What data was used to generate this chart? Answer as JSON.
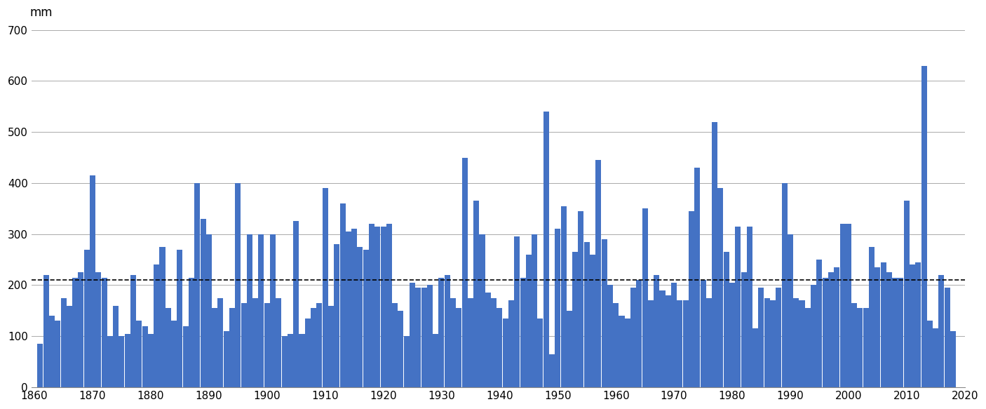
{
  "ylabel": "mm",
  "ylim": [
    0,
    700
  ],
  "yticks": [
    0,
    100,
    200,
    300,
    400,
    500,
    600,
    700
  ],
  "xlim": [
    1859.5,
    2019.5
  ],
  "xticks": [
    1860,
    1870,
    1880,
    1890,
    1900,
    1910,
    1920,
    1930,
    1940,
    1950,
    1960,
    1970,
    1980,
    1990,
    2000,
    2010,
    2020
  ],
  "bar_color": "#4472C4",
  "mean_line": 210,
  "background_color": "#ffffff",
  "bar_width": 0.97,
  "values": {
    "1861": 85,
    "1862": 220,
    "1863": 140,
    "1864": 130,
    "1865": 175,
    "1866": 160,
    "1867": 215,
    "1868": 225,
    "1869": 270,
    "1870": 415,
    "1871": 225,
    "1872": 215,
    "1873": 100,
    "1874": 160,
    "1875": 100,
    "1876": 105,
    "1877": 220,
    "1878": 130,
    "1879": 120,
    "1880": 105,
    "1881": 240,
    "1882": 275,
    "1883": 155,
    "1884": 130,
    "1885": 270,
    "1886": 120,
    "1887": 215,
    "1888": 400,
    "1889": 330,
    "1890": 300,
    "1891": 155,
    "1892": 175,
    "1893": 110,
    "1894": 155,
    "1895": 400,
    "1896": 165,
    "1897": 300,
    "1898": 175,
    "1899": 300,
    "1900": 165,
    "1901": 300,
    "1902": 175,
    "1903": 100,
    "1904": 105,
    "1905": 325,
    "1906": 105,
    "1907": 135,
    "1908": 155,
    "1909": 165,
    "1910": 390,
    "1911": 160,
    "1912": 280,
    "1913": 360,
    "1914": 305,
    "1915": 310,
    "1916": 275,
    "1917": 270,
    "1918": 320,
    "1919": 315,
    "1920": 315,
    "1921": 320,
    "1922": 165,
    "1923": 150,
    "1924": 100,
    "1925": 205,
    "1926": 195,
    "1927": 195,
    "1928": 200,
    "1929": 105,
    "1930": 215,
    "1931": 220,
    "1932": 175,
    "1933": 155,
    "1934": 450,
    "1935": 175,
    "1936": 365,
    "1937": 300,
    "1938": 185,
    "1939": 175,
    "1940": 155,
    "1941": 135,
    "1942": 170,
    "1943": 295,
    "1944": 215,
    "1945": 260,
    "1946": 300,
    "1947": 135,
    "1948": 540,
    "1949": 65,
    "1950": 310,
    "1951": 355,
    "1952": 150,
    "1953": 265,
    "1954": 345,
    "1955": 285,
    "1956": 260,
    "1957": 445,
    "1958": 290,
    "1959": 200,
    "1960": 165,
    "1961": 140,
    "1962": 135,
    "1963": 195,
    "1964": 210,
    "1965": 350,
    "1966": 170,
    "1967": 220,
    "1968": 190,
    "1969": 180,
    "1970": 205,
    "1971": 170,
    "1972": 170,
    "1973": 345,
    "1974": 430,
    "1975": 210,
    "1976": 175,
    "1977": 520,
    "1978": 390,
    "1979": 265,
    "1980": 205,
    "1981": 315,
    "1982": 225,
    "1983": 315,
    "1984": 115,
    "1985": 195,
    "1986": 175,
    "1987": 170,
    "1988": 195,
    "1989": 400,
    "1990": 300,
    "1991": 175,
    "1992": 170,
    "1993": 155,
    "1994": 200,
    "1995": 250,
    "1996": 215,
    "1997": 225,
    "1998": 235,
    "1999": 320,
    "2000": 320,
    "2001": 165,
    "2002": 155,
    "2003": 155,
    "2004": 275,
    "2005": 235,
    "2006": 245,
    "2007": 225,
    "2008": 215,
    "2009": 215,
    "2010": 365,
    "2011": 240,
    "2012": 245,
    "2013": 630,
    "2014": 130,
    "2015": 115,
    "2016": 220,
    "2017": 195,
    "2018": 110
  }
}
